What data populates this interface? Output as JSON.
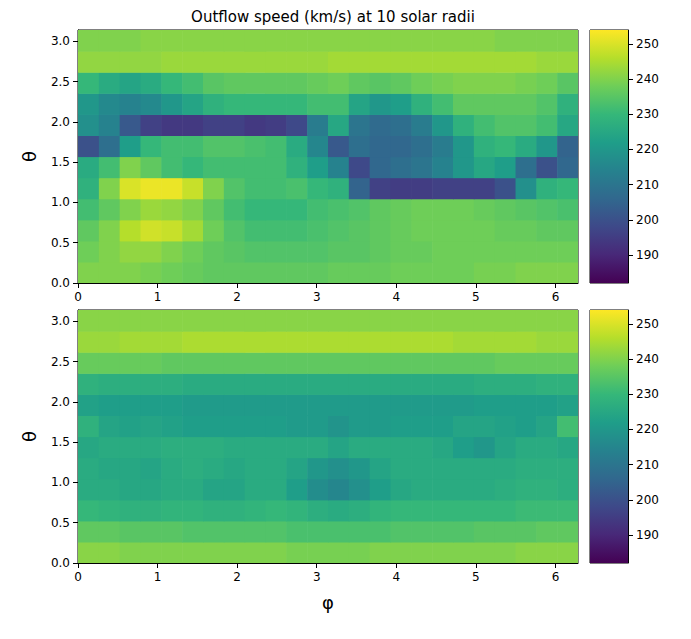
{
  "chart_data": [
    {
      "type": "heatmap",
      "title": "Outflow speed (km/s) at 10 solar radii",
      "y_label": "θ",
      "x": [
        0.131,
        0.393,
        0.654,
        0.916,
        1.178,
        1.44,
        1.702,
        1.963,
        2.225,
        2.487,
        2.749,
        3.011,
        3.272,
        3.534,
        3.796,
        4.058,
        4.32,
        4.581,
        4.843,
        5.105,
        5.367,
        5.629,
        5.89,
        6.152
      ],
      "y": [
        0.131,
        0.393,
        0.654,
        0.916,
        1.178,
        1.44,
        1.702,
        1.963,
        2.225,
        2.487,
        2.749,
        3.011
      ],
      "values": [
        [
          240,
          240,
          240,
          239,
          238,
          237,
          236,
          236,
          236,
          236,
          236,
          236,
          237,
          237,
          237,
          238,
          238,
          238,
          238,
          239,
          239,
          240,
          240,
          240
        ],
        [
          238,
          240,
          242,
          242,
          240,
          238,
          236,
          235,
          234,
          234,
          234,
          234,
          235,
          235,
          236,
          237,
          237,
          238,
          238,
          238,
          238,
          238,
          238,
          238
        ],
        [
          236,
          240,
          246,
          249,
          248,
          244,
          238,
          234,
          232,
          232,
          232,
          233,
          234,
          235,
          236,
          237,
          238,
          238,
          238,
          238,
          237,
          237,
          236,
          236
        ],
        [
          232,
          236,
          240,
          243,
          242,
          240,
          236,
          232,
          230,
          230,
          230,
          232,
          233,
          234,
          236,
          237,
          238,
          238,
          238,
          237,
          236,
          235,
          234,
          233
        ],
        [
          228,
          240,
          250,
          252,
          252,
          248,
          240,
          234,
          232,
          232,
          233,
          230,
          228,
          205,
          196,
          195,
          195,
          196,
          196,
          196,
          200,
          218,
          228,
          230
        ],
        [
          226,
          232,
          240,
          236,
          232,
          230,
          232,
          232,
          232,
          232,
          228,
          222,
          214,
          198,
          206,
          208,
          210,
          214,
          220,
          225,
          222,
          208,
          200,
          206
        ],
        [
          200,
          208,
          222,
          230,
          232,
          232,
          234,
          234,
          233,
          232,
          226,
          215,
          202,
          208,
          206,
          206,
          208,
          212,
          220,
          228,
          230,
          226,
          220,
          205
        ],
        [
          218,
          214,
          202,
          196,
          194,
          194,
          196,
          196,
          194,
          195,
          198,
          212,
          225,
          210,
          207,
          208,
          212,
          220,
          228,
          232,
          234,
          234,
          232,
          225
        ],
        [
          220,
          216,
          214,
          216,
          220,
          224,
          228,
          230,
          230,
          230,
          230,
          232,
          232,
          224,
          220,
          222,
          228,
          232,
          236,
          236,
          236,
          236,
          234,
          228
        ],
        [
          230,
          226,
          224,
          226,
          230,
          232,
          235,
          236,
          236,
          236,
          236,
          237,
          238,
          236,
          235,
          236,
          238,
          239,
          240,
          240,
          240,
          239,
          238,
          235
        ],
        [
          242,
          242,
          242,
          242,
          243,
          243,
          243,
          243,
          243,
          243,
          243,
          243,
          244,
          244,
          244,
          244,
          244,
          244,
          244,
          244,
          244,
          244,
          243,
          243
        ],
        [
          240,
          240,
          240,
          241,
          241,
          241,
          241,
          241,
          241,
          241,
          241,
          241,
          241,
          241,
          241,
          241,
          241,
          241,
          241,
          241,
          240,
          240,
          240,
          240
        ]
      ],
      "xlim": [
        0,
        6.283
      ],
      "xticks": [
        0,
        1,
        2,
        3,
        4,
        5,
        6
      ],
      "ylim": [
        0,
        3.1416
      ],
      "yticks": [
        {
          "value": 0,
          "label": "0.0"
        },
        0.5,
        {
          "value": 1,
          "label": "1.0"
        },
        1.5,
        {
          "value": 2,
          "label": "2.0"
        },
        2.5,
        {
          "value": 3,
          "label": "3.0"
        }
      ],
      "colorbar_range": [
        182,
        254
      ],
      "colorbar_ticks": [
        190,
        200,
        210,
        220,
        230,
        240,
        250
      ],
      "grid": false
    },
    {
      "type": "heatmap",
      "x_label": "φ",
      "y_label": "θ",
      "x": [
        0.131,
        0.393,
        0.654,
        0.916,
        1.178,
        1.44,
        1.702,
        1.963,
        2.225,
        2.487,
        2.749,
        3.011,
        3.272,
        3.534,
        3.796,
        4.058,
        4.32,
        4.581,
        4.843,
        5.105,
        5.367,
        5.629,
        5.89,
        6.152
      ],
      "y": [
        0.131,
        0.393,
        0.654,
        0.916,
        1.178,
        1.44,
        1.702,
        1.963,
        2.225,
        2.487,
        2.749,
        3.011
      ],
      "values": [
        [
          241,
          241,
          240,
          240,
          240,
          240,
          240,
          240,
          240,
          240,
          239,
          239,
          239,
          239,
          240,
          240,
          240,
          240,
          240,
          240,
          240,
          241,
          241,
          241
        ],
        [
          236,
          236,
          235,
          235,
          235,
          234,
          234,
          234,
          234,
          234,
          233,
          233,
          233,
          233,
          233,
          234,
          234,
          234,
          234,
          235,
          235,
          235,
          236,
          236
        ],
        [
          230,
          229,
          228,
          228,
          229,
          229,
          228,
          228,
          229,
          230,
          229,
          227,
          226,
          227,
          229,
          230,
          230,
          230,
          230,
          230,
          230,
          231,
          231,
          231
        ],
        [
          226,
          226,
          225,
          225,
          226,
          226,
          224,
          224,
          226,
          226,
          222,
          217,
          215,
          218,
          222,
          225,
          226,
          226,
          226,
          226,
          227,
          228,
          228,
          227
        ],
        [
          226,
          225,
          225,
          224,
          226,
          227,
          226,
          225,
          226,
          226,
          224,
          220,
          218,
          220,
          224,
          226,
          226,
          226,
          226,
          226,
          226,
          227,
          227,
          227
        ],
        [
          225,
          226,
          226,
          226,
          227,
          227,
          227,
          226,
          226,
          226,
          226,
          226,
          224,
          226,
          226,
          226,
          226,
          225,
          222,
          220,
          224,
          226,
          226,
          225
        ],
        [
          228,
          224,
          223,
          224,
          223,
          222,
          222,
          222,
          222,
          222,
          221,
          221,
          219,
          221,
          221,
          222,
          222,
          222,
          224,
          224,
          223,
          222,
          224,
          232
        ],
        [
          223,
          222,
          222,
          222,
          222,
          221,
          221,
          221,
          221,
          221,
          221,
          221,
          221,
          221,
          221,
          221,
          221,
          221,
          221,
          222,
          222,
          222,
          222,
          223
        ],
        [
          228,
          227,
          227,
          227,
          227,
          226,
          226,
          226,
          226,
          226,
          226,
          226,
          226,
          226,
          226,
          226,
          226,
          226,
          226,
          227,
          227,
          227,
          228,
          228
        ],
        [
          237,
          237,
          237,
          237,
          236,
          236,
          236,
          236,
          236,
          236,
          236,
          236,
          236,
          236,
          236,
          236,
          236,
          236,
          236,
          236,
          237,
          237,
          237,
          237
        ],
        [
          243,
          243,
          244,
          244,
          244,
          245,
          245,
          245,
          245,
          245,
          245,
          245,
          245,
          245,
          245,
          245,
          245,
          245,
          244,
          244,
          244,
          244,
          243,
          243
        ],
        [
          241,
          241,
          241,
          241,
          241,
          241,
          241,
          241,
          241,
          241,
          241,
          241,
          241,
          241,
          241,
          241,
          241,
          241,
          241,
          241,
          241,
          241,
          241,
          241
        ]
      ],
      "xlim": [
        0,
        6.283
      ],
      "xticks": [
        0,
        1,
        2,
        3,
        4,
        5,
        6
      ],
      "ylim": [
        0,
        3.1416
      ],
      "yticks": [
        {
          "value": 0,
          "label": "0.0"
        },
        0.5,
        {
          "value": 1,
          "label": "1.0"
        },
        1.5,
        {
          "value": 2,
          "label": "2.0"
        },
        2.5,
        {
          "value": 3,
          "label": "3.0"
        }
      ],
      "colorbar_range": [
        182,
        254
      ],
      "colorbar_ticks": [
        190,
        200,
        210,
        220,
        230,
        240,
        250
      ],
      "grid": false
    }
  ]
}
